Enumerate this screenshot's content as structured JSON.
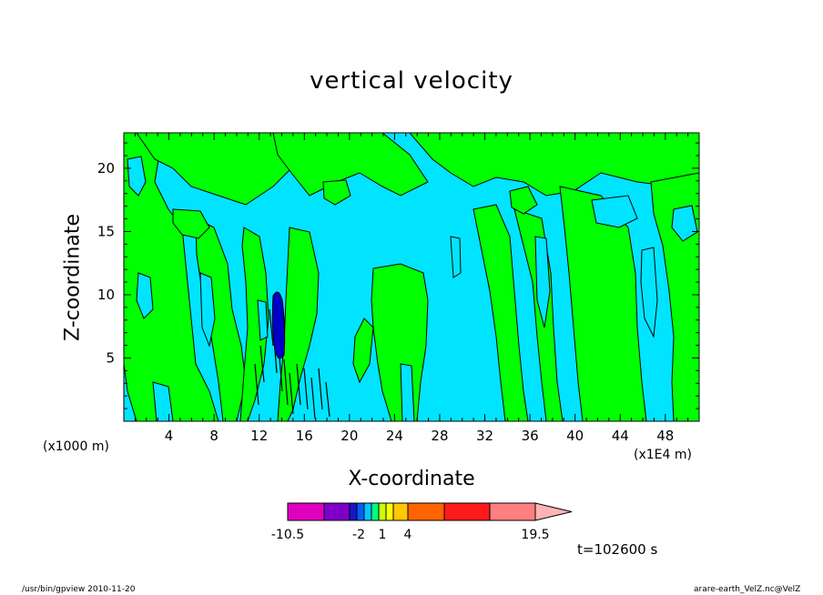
{
  "chart_data": {
    "type": "heatmap",
    "title": "vertical velocity",
    "xlabel": "X-coordinate",
    "ylabel": "Z-coordinate",
    "x_unit_left": "(x1000 m)",
    "x_unit_right": "(x1E4 m)",
    "xlim": [
      0,
      51
    ],
    "ylim": [
      0,
      22.8
    ],
    "x_ticks": [
      4,
      8,
      12,
      16,
      20,
      24,
      28,
      32,
      36,
      40,
      44,
      48
    ],
    "y_ticks": [
      5,
      10,
      15,
      20
    ],
    "colors": {
      "background_field": "#00e4ff",
      "positive_band": "#00ff00",
      "core": "#0000c8",
      "contour": "#000000"
    },
    "colorbar": {
      "colors": [
        "#e000c0",
        "#7e00c8",
        "#1818c8",
        "#0060ff",
        "#00c8ff",
        "#00ff84",
        "#c8ff00",
        "#ffff00",
        "#ffc800",
        "#ff6400",
        "#ff1a1a",
        "#ff8080",
        "#ffb4b4"
      ],
      "labels": [
        "-10.5",
        "-2",
        "1",
        "4",
        "19.5"
      ],
      "label_values": [
        -10.5,
        -2,
        1,
        4,
        19.5
      ]
    },
    "time_label": "t=102600 s",
    "footer_left": "/usr/bin/gpview  2010-11-20",
    "footer_right": "arare-earth_VelZ.nc@VelZ"
  }
}
